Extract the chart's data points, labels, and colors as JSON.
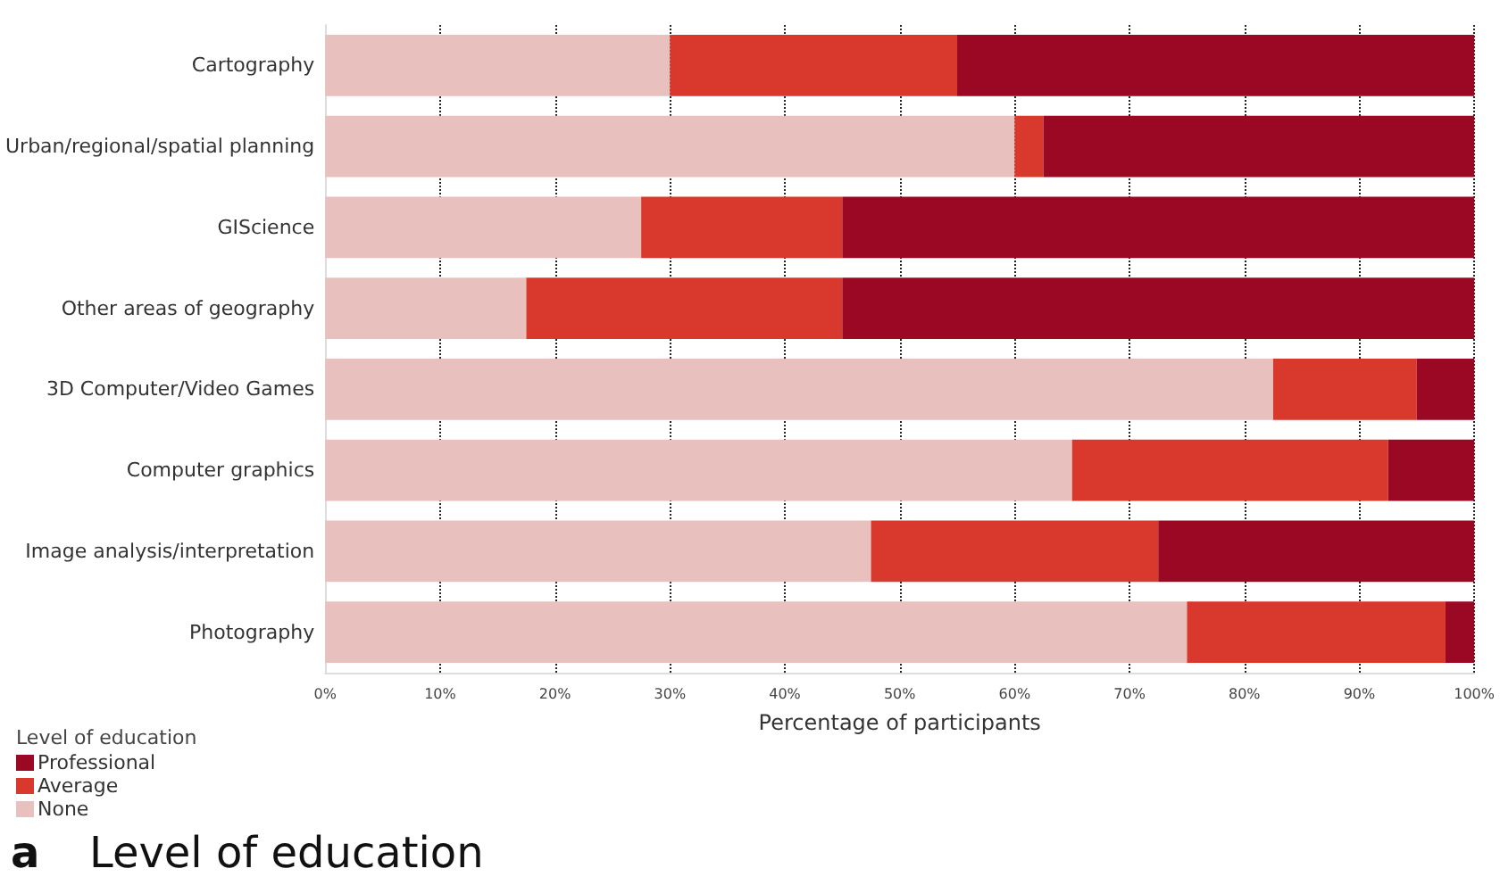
{
  "chart_data": {
    "type": "bar",
    "orientation": "horizontal",
    "stacked": true,
    "title": "Level of education",
    "annotations": [
      "a"
    ],
    "xlabel": "Percentage of participants",
    "legend_title": "Level of education",
    "categories": [
      "Cartography",
      "Urban/regional/spatial planning",
      "GIScience",
      "Other areas of geography",
      "3D Computer/Video Games",
      "Computer graphics",
      "Image analysis/interpretation",
      "Photography"
    ],
    "series": [
      {
        "name": "None",
        "color": "#e8c1be",
        "values": [
          30,
          60,
          27.5,
          17.5,
          82.5,
          65,
          47.5,
          75
        ]
      },
      {
        "name": "Average",
        "color": "#d9382c",
        "values": [
          25,
          2.5,
          17.5,
          27.5,
          12.5,
          27.5,
          25,
          22.5
        ]
      },
      {
        "name": "Professional",
        "color": "#9b0823",
        "values": [
          45,
          37.5,
          55,
          55,
          5,
          7.5,
          27.5,
          2.5
        ]
      }
    ],
    "xlim": [
      0,
      100
    ],
    "xticks": [
      {
        "value": 0,
        "label": "0%"
      },
      {
        "value": 10,
        "label": "10%"
      },
      {
        "value": 20,
        "label": "20%"
      },
      {
        "value": 30,
        "label": "30%"
      },
      {
        "value": 40,
        "label": "40%"
      },
      {
        "value": 50,
        "label": "50%"
      },
      {
        "value": 60,
        "label": "60%"
      },
      {
        "value": 70,
        "label": "70%"
      },
      {
        "value": 80,
        "label": "80%"
      },
      {
        "value": 90,
        "label": "90%"
      },
      {
        "value": 100,
        "label": "100%"
      }
    ],
    "grid": "x",
    "legend": "bottom left"
  }
}
